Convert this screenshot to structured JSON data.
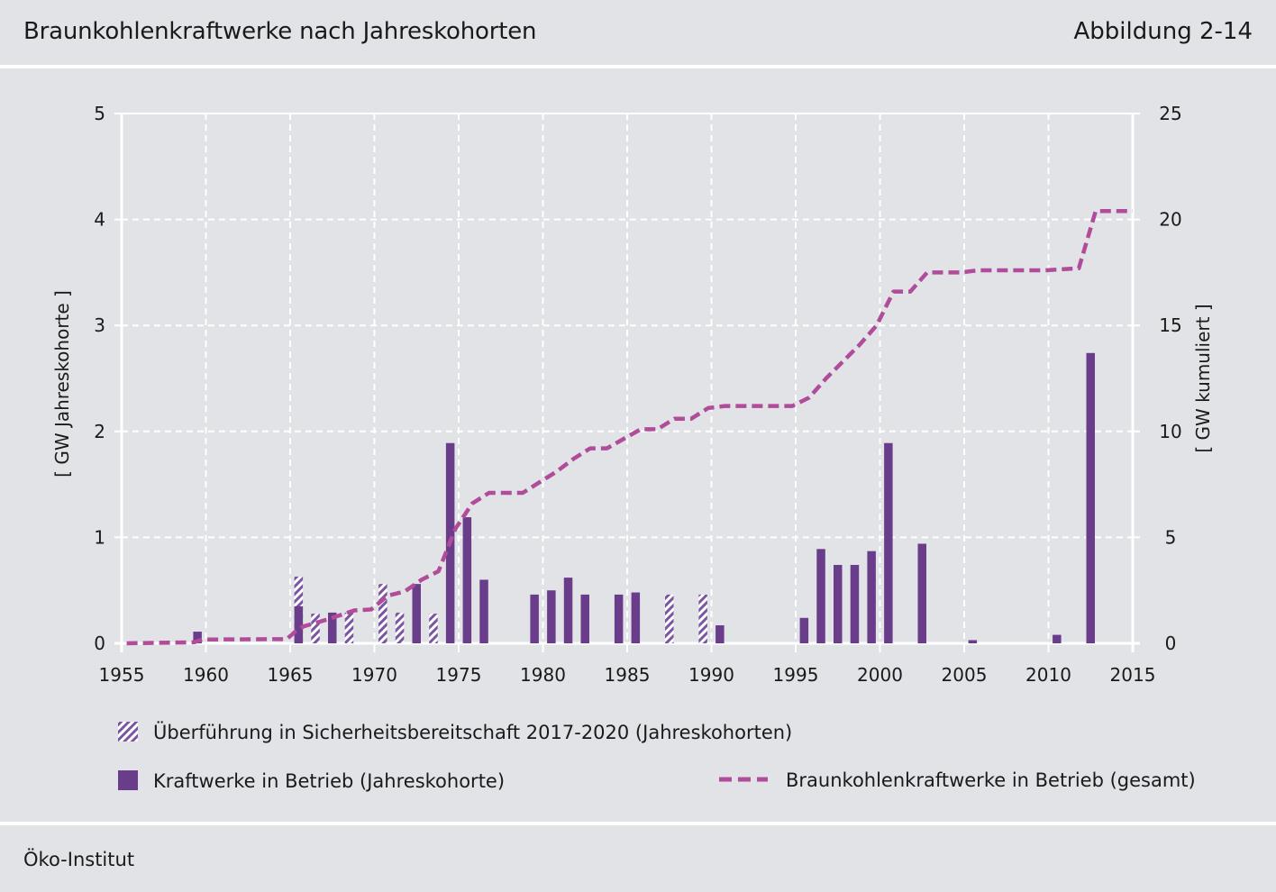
{
  "header": {
    "title": "Braunkohlenkraftwerke nach Jahreskohorten",
    "figure_number": "Abbildung 2-14"
  },
  "footer": {
    "source": "Öko-Institut"
  },
  "colors": {
    "background": "#e2e3e7",
    "bar_operating": "#6a3d8a",
    "bar_reserve_stripe": "#7a56a2",
    "cumulative_line": "#b04c9a",
    "gridline": "#ffffff"
  },
  "chart_data": {
    "type": "bar",
    "title": "Braunkohlenkraftwerke nach Jahreskohorten",
    "ylabel": "[ GW Jahreskohorte ]",
    "y2label": "[ GW kumuliert ]",
    "xlim": [
      1955,
      2015
    ],
    "ylim": [
      0,
      5
    ],
    "y2lim": [
      0,
      25
    ],
    "x_ticks": [
      1955,
      1960,
      1965,
      1970,
      1975,
      1980,
      1985,
      1990,
      1995,
      2000,
      2005,
      2010,
      2015
    ],
    "y_ticks": [
      0,
      1,
      2,
      3,
      4,
      5
    ],
    "y2_ticks": [
      0,
      5,
      10,
      15,
      20,
      25
    ],
    "grid": true,
    "series": [
      {
        "name": "Überführung in Sicherheitsbereitschaft 2017-2020 (Jahreskohorten)",
        "kind": "bar-hatched",
        "points": [
          {
            "x": 1965.5,
            "y": 0.63
          },
          {
            "x": 1966.5,
            "y": 0.28
          },
          {
            "x": 1968.5,
            "y": 0.29
          },
          {
            "x": 1970.5,
            "y": 0.56
          },
          {
            "x": 1971.5,
            "y": 0.29
          },
          {
            "x": 1973.5,
            "y": 0.28
          },
          {
            "x": 1987.5,
            "y": 0.46
          },
          {
            "x": 1989.5,
            "y": 0.46
          }
        ]
      },
      {
        "name": "Kraftwerke in Betrieb (Jahreskohorte)",
        "kind": "bar",
        "points": [
          {
            "x": 1959.5,
            "y": 0.11
          },
          {
            "x": 1965.5,
            "y": 0.35
          },
          {
            "x": 1967.5,
            "y": 0.29
          },
          {
            "x": 1972.5,
            "y": 0.56
          },
          {
            "x": 1974.5,
            "y": 1.89
          },
          {
            "x": 1975.5,
            "y": 1.19
          },
          {
            "x": 1976.5,
            "y": 0.6
          },
          {
            "x": 1979.5,
            "y": 0.46
          },
          {
            "x": 1980.5,
            "y": 0.5
          },
          {
            "x": 1981.5,
            "y": 0.62
          },
          {
            "x": 1982.5,
            "y": 0.46
          },
          {
            "x": 1984.5,
            "y": 0.46
          },
          {
            "x": 1985.5,
            "y": 0.48
          },
          {
            "x": 1990.5,
            "y": 0.17
          },
          {
            "x": 1995.5,
            "y": 0.24
          },
          {
            "x": 1996.5,
            "y": 0.89
          },
          {
            "x": 1997.5,
            "y": 0.74
          },
          {
            "x": 1998.5,
            "y": 0.74
          },
          {
            "x": 1999.5,
            "y": 0.87
          },
          {
            "x": 2000.5,
            "y": 1.89
          },
          {
            "x": 2002.5,
            "y": 0.94
          },
          {
            "x": 2005.5,
            "y": 0.03
          },
          {
            "x": 2010.5,
            "y": 0.08
          },
          {
            "x": 2012.5,
            "y": 2.74
          }
        ]
      },
      {
        "name": "Braunkohlenkraftwerke in Betrieb (gesamt)",
        "kind": "line-dashed",
        "axis": "y2",
        "points": [
          {
            "x": 1955.3,
            "y": 0
          },
          {
            "x": 1959.3,
            "y": 0.05
          },
          {
            "x": 1959.8,
            "y": 0.18
          },
          {
            "x": 1964.8,
            "y": 0.2
          },
          {
            "x": 1965.3,
            "y": 0.55
          },
          {
            "x": 1965.8,
            "y": 0.8
          },
          {
            "x": 1967.3,
            "y": 1.15
          },
          {
            "x": 1968.8,
            "y": 1.55
          },
          {
            "x": 1969.8,
            "y": 1.6
          },
          {
            "x": 1970.8,
            "y": 2.25
          },
          {
            "x": 1971.8,
            "y": 2.45
          },
          {
            "x": 1972.8,
            "y": 3.0
          },
          {
            "x": 1973.8,
            "y": 3.4
          },
          {
            "x": 1974.8,
            "y": 5.4
          },
          {
            "x": 1975.8,
            "y": 6.6
          },
          {
            "x": 1976.8,
            "y": 7.1
          },
          {
            "x": 1978.8,
            "y": 7.1
          },
          {
            "x": 1979.8,
            "y": 7.6
          },
          {
            "x": 1980.8,
            "y": 8.1
          },
          {
            "x": 1981.8,
            "y": 8.7
          },
          {
            "x": 1982.8,
            "y": 9.2
          },
          {
            "x": 1983.8,
            "y": 9.2
          },
          {
            "x": 1984.8,
            "y": 9.65
          },
          {
            "x": 1985.8,
            "y": 10.1
          },
          {
            "x": 1986.8,
            "y": 10.1
          },
          {
            "x": 1987.8,
            "y": 10.6
          },
          {
            "x": 1988.8,
            "y": 10.6
          },
          {
            "x": 1989.8,
            "y": 11.1
          },
          {
            "x": 1990.8,
            "y": 11.2
          },
          {
            "x": 1994.8,
            "y": 11.2
          },
          {
            "x": 1995.8,
            "y": 11.6
          },
          {
            "x": 1996.8,
            "y": 12.5
          },
          {
            "x": 1997.8,
            "y": 13.3
          },
          {
            "x": 1998.8,
            "y": 14.1
          },
          {
            "x": 1999.8,
            "y": 15.0
          },
          {
            "x": 2000.8,
            "y": 16.6
          },
          {
            "x": 2001.8,
            "y": 16.6
          },
          {
            "x": 2002.8,
            "y": 17.5
          },
          {
            "x": 2004.8,
            "y": 17.5
          },
          {
            "x": 2005.8,
            "y": 17.6
          },
          {
            "x": 2009.8,
            "y": 17.6
          },
          {
            "x": 2011.8,
            "y": 17.7
          },
          {
            "x": 2012.8,
            "y": 20.4
          },
          {
            "x": 2015,
            "y": 20.4
          }
        ]
      }
    ],
    "legend": [
      {
        "label": "Überführung in Sicherheitsbereitschaft 2017-2020 (Jahreskohorten)",
        "kind": "hatched"
      },
      {
        "label": "Kraftwerke in Betrieb (Jahreskohorte)",
        "kind": "solid"
      },
      {
        "label": "Braunkohlenkraftwerke in Betrieb (gesamt)",
        "kind": "dashed"
      }
    ],
    "legend_position": "bottom"
  }
}
